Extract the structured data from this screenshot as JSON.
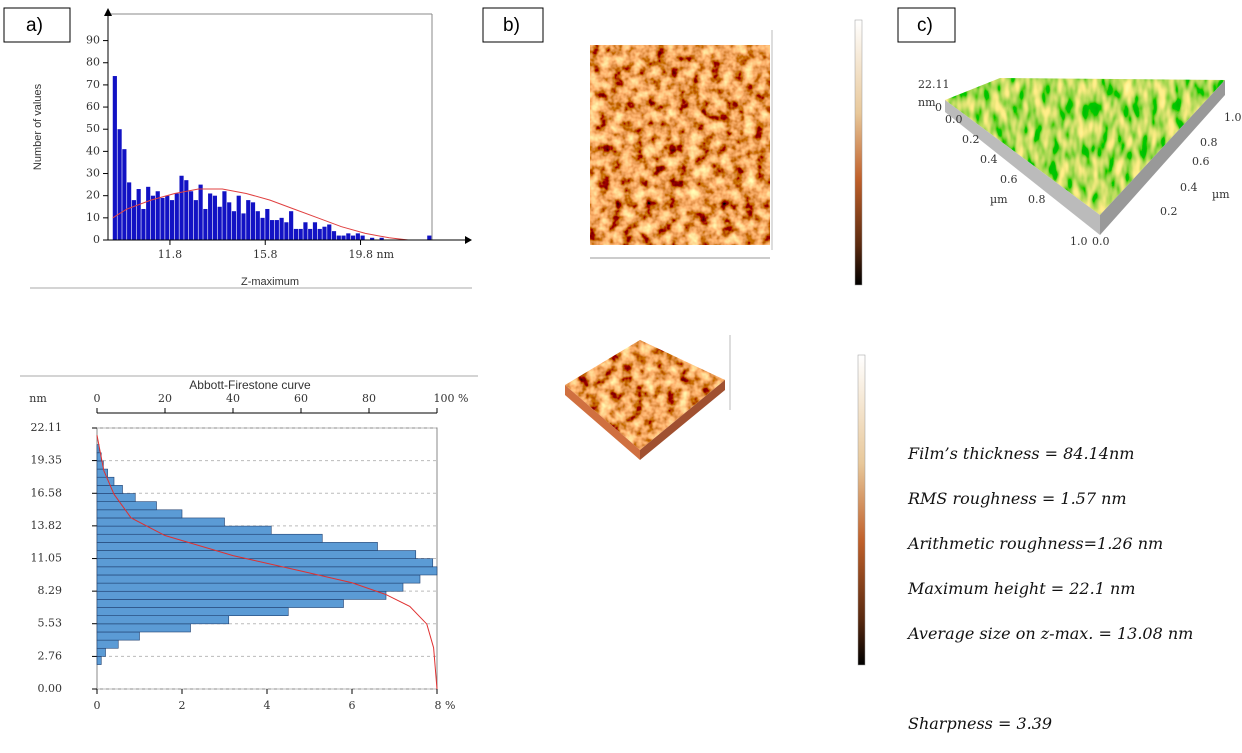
{
  "panel_labels": [
    "a)",
    "b)",
    "c)"
  ],
  "chart_data": [
    {
      "type": "histogram",
      "orientation": "vertical",
      "xlabel": "Z-maximum",
      "ylabel": "Number of values",
      "color": "#1212c4",
      "bins": [
        9.4,
        9.6,
        9.8,
        10,
        10.2,
        10.4,
        10.6,
        10.8,
        11,
        11.2,
        11.4,
        11.6,
        11.8,
        12,
        12.2,
        12.4,
        12.6,
        12.8,
        13,
        13.2,
        13.4,
        13.6,
        13.8,
        14,
        14.2,
        14.4,
        14.6,
        14.8,
        15,
        15.2,
        15.4,
        15.6,
        15.8,
        16,
        16.2,
        16.4,
        16.6,
        16.8,
        17,
        17.2,
        17.4,
        17.6,
        17.8,
        18,
        18.2,
        18.4,
        18.6,
        18.8,
        19,
        19.2,
        19.4,
        19.6,
        19.8,
        20,
        20.2,
        20.4,
        20.6,
        20.8,
        21,
        21.2,
        21.4,
        21.6,
        21.8,
        22,
        22.2,
        22.4,
        22.6,
        22.8
      ],
      "values": [
        74,
        50,
        41,
        26,
        18,
        23,
        14,
        24,
        20,
        22,
        19,
        20,
        18,
        21,
        29,
        27,
        22,
        18,
        25,
        14,
        21,
        20,
        15,
        22,
        17,
        13,
        20,
        12,
        18,
        17,
        13,
        10,
        14,
        9,
        9,
        10,
        8,
        13,
        5,
        5,
        8,
        5,
        8,
        5,
        6,
        7,
        4,
        2,
        2,
        3,
        2,
        3,
        2,
        0,
        1,
        0,
        1,
        0,
        0,
        0,
        0,
        0,
        0,
        0,
        0,
        0,
        2
      ],
      "line": {
        "color": "#e04040",
        "x": [
          9.4,
          10,
          11,
          12,
          13,
          14,
          15,
          16,
          17,
          18,
          19,
          20,
          21,
          21.8
        ],
        "values": [
          10,
          14,
          18,
          21,
          23,
          23,
          21,
          18,
          14,
          10,
          6,
          3,
          1,
          0
        ]
      },
      "xlim": [
        9.2,
        22.8
      ],
      "ylim": [
        0,
        102
      ],
      "xticks": [
        11.8,
        15.8,
        {
          "value": 19.8,
          "label": "19.8 nm"
        }
      ],
      "yticks": [
        0,
        10,
        20,
        30,
        40,
        50,
        60,
        70,
        80,
        90
      ],
      "grid": false
    },
    {
      "type": "histogram",
      "orientation": "horizontal",
      "title": "Abbott-Firestone curve",
      "ylabel": "nm",
      "color": "#5b9bd5",
      "bins": [
        0,
        0.69,
        1.38,
        2.07,
        2.76,
        3.45,
        4.14,
        4.83,
        5.52,
        6.21,
        6.9,
        7.59,
        8.28,
        8.97,
        9.66,
        10.35,
        11.04,
        11.73,
        12.42,
        13.11,
        13.8,
        14.49,
        15.18,
        15.87,
        16.56,
        17.25,
        17.94,
        18.63,
        19.32,
        20.01,
        20.7,
        21.39,
        22.08
      ],
      "values": [
        0,
        0,
        0,
        0.1,
        0.2,
        0.5,
        1.0,
        2.2,
        3.1,
        4.5,
        5.8,
        6.8,
        7.2,
        7.6,
        8.0,
        7.9,
        7.5,
        6.6,
        5.3,
        4.1,
        3.0,
        2.0,
        1.4,
        0.9,
        0.6,
        0.4,
        0.25,
        0.15,
        0.1,
        0.05,
        0,
        0
      ],
      "line": {
        "color": "#e03030",
        "axis": "x2",
        "x": [
          0,
          2,
          5,
          10,
          20,
          40,
          60,
          75,
          85,
          92,
          97,
          99,
          100
        ],
        "values": [
          21.5,
          18.5,
          16.5,
          14.5,
          13.0,
          11.3,
          10.0,
          9.0,
          8.0,
          7.0,
          5.5,
          3.5,
          0
        ]
      },
      "xlim": [
        0,
        8
      ],
      "x2lim": [
        0,
        100
      ],
      "ylim": [
        0,
        22.11
      ],
      "xticks": [
        0,
        2,
        4,
        6,
        {
          "value": 8,
          "label": "8 %"
        }
      ],
      "x2ticks": [
        0,
        20,
        40,
        60,
        80,
        {
          "value": 100,
          "label": "100 %"
        }
      ],
      "yticks": [
        {
          "value": 0,
          "label": "0.00"
        },
        2.76,
        5.53,
        8.29,
        11.05,
        13.82,
        16.58,
        19.35,
        22.11
      ],
      "grid": true
    }
  ],
  "surface_labels": {
    "z_max": "22.11",
    "z_unit": "nm",
    "z_min": "0",
    "unit": "µm",
    "x_ticks": [
      "0.0",
      "0.2",
      "0.4",
      "0.6",
      "0.8",
      "1.0"
    ],
    "y_ticks": [
      "0.0",
      "0.2",
      "0.4",
      "0.6",
      "0.8",
      "1.0"
    ]
  },
  "results": [
    "Film’s thickness = 84.14nm",
    "RMS roughness = 1.57 nm",
    "Arithmetic roughness=1.26 nm",
    "Maximum height = 22.1 nm",
    "Average size on z-max. = 13.08 nm",
    "Sharpness = 3.39"
  ]
}
